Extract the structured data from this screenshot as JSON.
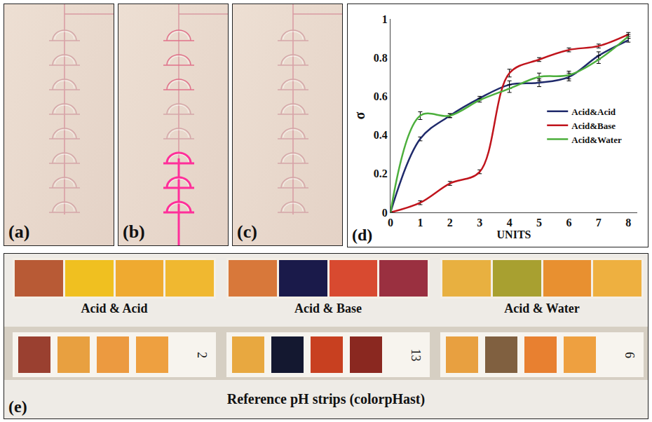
{
  "photos": [
    {
      "label": "(a)"
    },
    {
      "label": "(b)"
    },
    {
      "label": "(c)"
    }
  ],
  "chart_label": "(d)",
  "chart_data": {
    "type": "line",
    "x_label": "UNITS",
    "y_label": "σ",
    "x": [
      0,
      1,
      2,
      3,
      4,
      5,
      6,
      7,
      8
    ],
    "xlim": [
      0,
      8.3
    ],
    "xticks": [
      0,
      1,
      2,
      3,
      4,
      5,
      6,
      7,
      8
    ],
    "ylim": [
      0,
      1
    ],
    "yticks": [
      0,
      0.2,
      0.4,
      0.6,
      0.8,
      1
    ],
    "grid": false,
    "legend": "right",
    "series": [
      {
        "name": "Acid&Acid",
        "color": "#1f2a6b",
        "line_style": "smooth",
        "values": [
          0,
          0.38,
          0.5,
          0.59,
          0.66,
          0.67,
          0.7,
          0.81,
          0.89
        ],
        "errors": [
          0,
          0.01,
          0.01,
          0.01,
          0.02,
          0.02,
          0.02,
          0.02,
          0.01
        ]
      },
      {
        "name": "Acid&Base",
        "color": "#c0141c",
        "line_style": "smooth",
        "values": [
          0,
          0.05,
          0.15,
          0.21,
          0.72,
          0.79,
          0.84,
          0.86,
          0.92
        ],
        "errors": [
          0,
          0.01,
          0.01,
          0.01,
          0.02,
          0.01,
          0.01,
          0.01,
          0.01
        ]
      },
      {
        "name": "Acid&Water",
        "color": "#4caf3c",
        "line_style": "smooth",
        "values": [
          0,
          0.5,
          0.5,
          0.58,
          0.64,
          0.7,
          0.71,
          0.79,
          0.91
        ],
        "errors": [
          0,
          0.02,
          0.01,
          0.01,
          0.02,
          0.02,
          0.02,
          0.02,
          0.01
        ]
      }
    ]
  },
  "strips": {
    "label": "(e)",
    "caption": "Reference pH strips (colorpHast)",
    "groups": [
      {
        "name": "Acid & Acid",
        "colors": [
          "#b85a35",
          "#f0c020",
          "#efaa30",
          "#f0b830"
        ],
        "reference": {
          "colors": [
            "#9a4030",
            "#e8a040",
            "#ec9a40",
            "#eea040"
          ],
          "ph": 2
        }
      },
      {
        "name": "Acid & Base",
        "colors": [
          "#d8783a",
          "#1a1a4a",
          "#d84a30",
          "#9a3040"
        ],
        "reference": {
          "colors": [
            "#e8a840",
            "#141830",
            "#c84020",
            "#8a2820"
          ],
          "ph": 13
        }
      },
      {
        "name": "Acid & Water",
        "colors": [
          "#e8b040",
          "#a8a030",
          "#e89030",
          "#eeb040"
        ],
        "reference": {
          "colors": [
            "#e8a040",
            "#806040",
            "#e88030",
            "#eea040"
          ],
          "ph": 6
        }
      }
    ]
  }
}
